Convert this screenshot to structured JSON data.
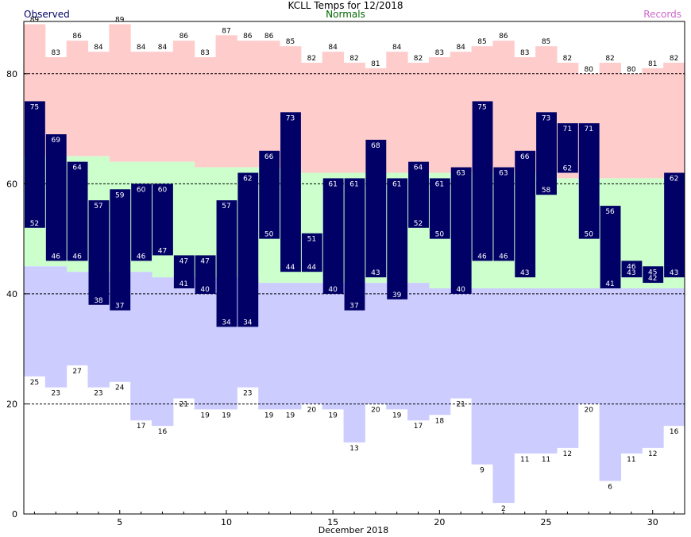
{
  "title": "KCLL Temps for 12/2018",
  "legend": {
    "observed": "Observed",
    "normals": "Normals",
    "records": "Records",
    "observed_color": "#000066",
    "normals_color": "#006600",
    "records_color": "#cc66cc"
  },
  "colors": {
    "observed_bar": "#000066",
    "normal_band": "#ccffcc",
    "record_high": "#ffcccc",
    "record_low": "#ccccff",
    "gridline": "#000000"
  },
  "chart_data": {
    "type": "bar",
    "xlabel": "December 2018",
    "ylim": [
      0,
      89.5
    ],
    "yticks": [
      0,
      20,
      40,
      60,
      80
    ],
    "xticks": [
      5,
      10,
      15,
      20,
      25,
      30
    ],
    "grid": "dashed at 20, 40, 60, 80",
    "days": [
      1,
      2,
      3,
      4,
      5,
      6,
      7,
      8,
      9,
      10,
      11,
      12,
      13,
      14,
      15,
      16,
      17,
      18,
      19,
      20,
      21,
      22,
      23,
      24,
      25,
      26,
      27,
      28,
      29,
      30,
      31
    ],
    "series": [
      {
        "name": "Observed",
        "high": [
          75,
          69,
          64,
          57,
          59,
          60,
          60,
          47,
          47,
          57,
          62,
          66,
          73,
          51,
          61,
          61,
          68,
          61,
          64,
          61,
          63,
          75,
          63,
          66,
          73,
          71,
          71,
          56,
          46,
          45,
          62
        ],
        "low": [
          52,
          46,
          46,
          38,
          37,
          46,
          47,
          41,
          40,
          34,
          34,
          50,
          44,
          44,
          40,
          37,
          43,
          39,
          52,
          50,
          40,
          46,
          46,
          43,
          58,
          62,
          50,
          41,
          43,
          42,
          43
        ]
      },
      {
        "name": "Normals",
        "high": [
          65,
          65,
          65,
          65,
          64,
          64,
          64,
          64,
          63,
          63,
          63,
          63,
          63,
          62,
          62,
          62,
          62,
          62,
          62,
          62,
          62,
          62,
          62,
          62,
          62,
          61,
          61,
          61,
          61,
          61,
          61
        ],
        "low": [
          45,
          45,
          44,
          44,
          44,
          44,
          43,
          43,
          43,
          43,
          43,
          42,
          42,
          42,
          42,
          42,
          42,
          42,
          42,
          41,
          41,
          41,
          41,
          41,
          41,
          41,
          41,
          41,
          41,
          41,
          41
        ]
      },
      {
        "name": "Records",
        "high": [
          89,
          83,
          86,
          84,
          89,
          84,
          84,
          86,
          83,
          87,
          86,
          86,
          85,
          82,
          84,
          82,
          81,
          84,
          82,
          83,
          84,
          85,
          86,
          83,
          85,
          82,
          80,
          82,
          80,
          81,
          82
        ],
        "low": [
          25,
          23,
          27,
          23,
          24,
          17,
          16,
          21,
          19,
          19,
          23,
          19,
          19,
          20,
          19,
          13,
          20,
          19,
          17,
          18,
          21,
          9,
          2,
          11,
          11,
          12,
          20,
          6,
          11,
          12,
          16
        ]
      }
    ],
    "record_high_labels": [
      "89",
      "83",
      "86",
      "84",
      "89",
      "84",
      "84",
      "86",
      "83",
      "87",
      "86",
      "86",
      "85",
      "82",
      "84",
      "82",
      "81",
      "84",
      "82",
      "83",
      "84",
      "85",
      "86",
      "83",
      "85",
      "82",
      "80",
      "82",
      "80",
      "81",
      "82"
    ]
  }
}
